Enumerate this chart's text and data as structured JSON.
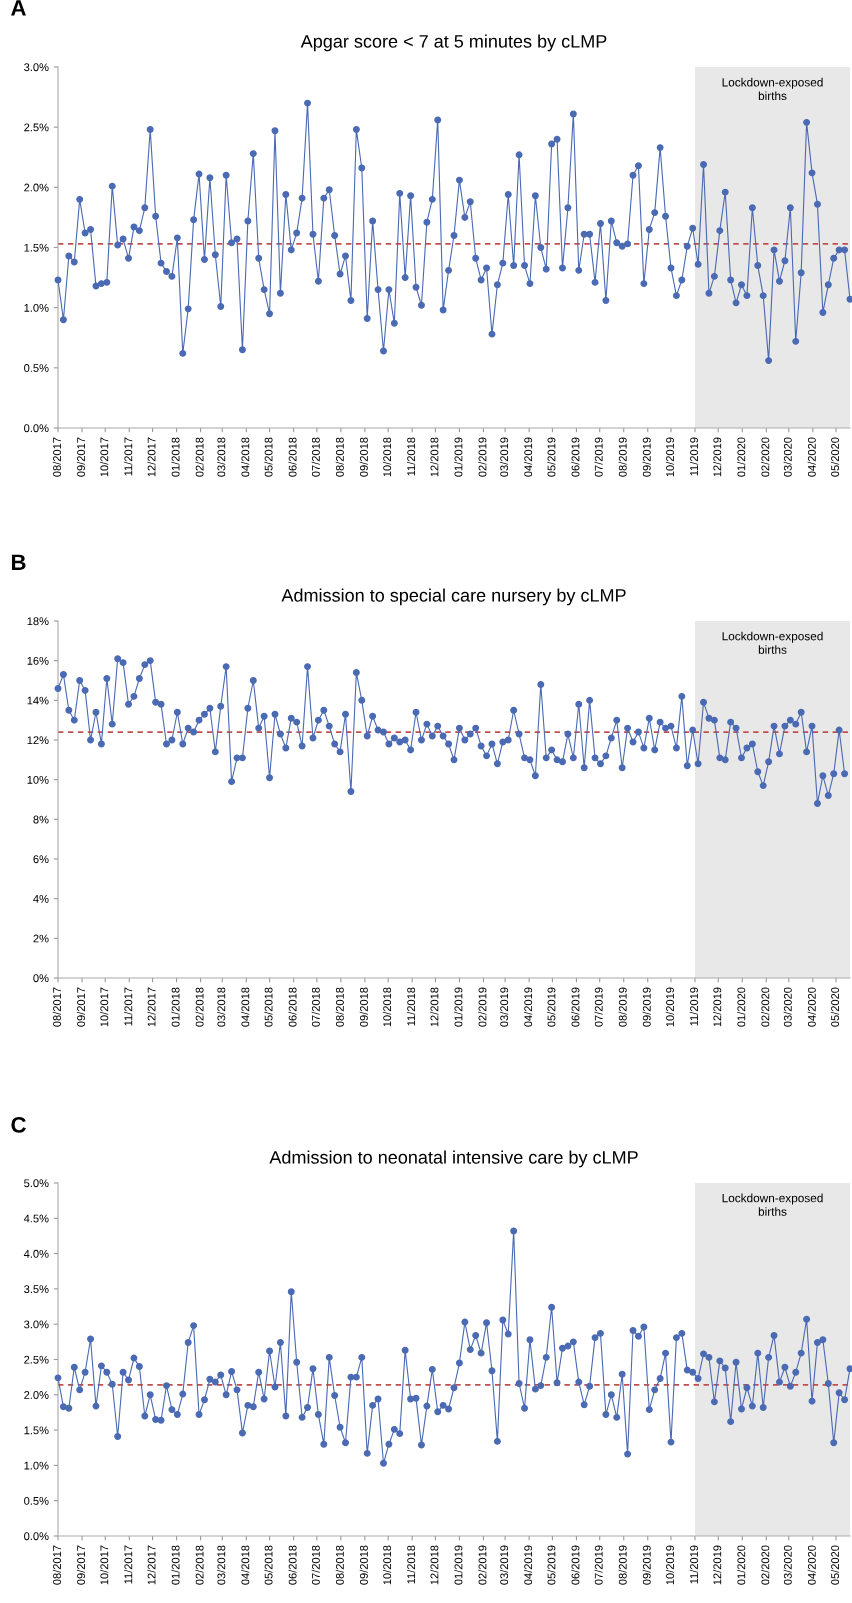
{
  "chart_data": [
    {
      "type": "line",
      "title": "Apgar score < 7 at 5 minutes by cLMP",
      "annotations": [
        "A"
      ],
      "marker": "circle",
      "line_style": "solid",
      "x": [
        "2017-08-01",
        "2017-08-08",
        "2017-08-15",
        "2017-08-22",
        "2017-08-29",
        "2017-09-05",
        "2017-09-12",
        "2017-09-19",
        "2017-09-26",
        "2017-10-03",
        "2017-10-10",
        "2017-10-17",
        "2017-10-24",
        "2017-10-31",
        "2017-11-07",
        "2017-11-14",
        "2017-11-21",
        "2017-11-28",
        "2017-12-05",
        "2017-12-12",
        "2017-12-19",
        "2017-12-26",
        "2018-01-02",
        "2018-01-09",
        "2018-01-16",
        "2018-01-23",
        "2018-01-30",
        "2018-02-06",
        "2018-02-13",
        "2018-02-20",
        "2018-02-27",
        "2018-03-06",
        "2018-03-13",
        "2018-03-20",
        "2018-03-27",
        "2018-04-03",
        "2018-04-10",
        "2018-04-17",
        "2018-04-24",
        "2018-05-01",
        "2018-05-08",
        "2018-05-15",
        "2018-05-22",
        "2018-05-29",
        "2018-06-05",
        "2018-06-12",
        "2018-06-19",
        "2018-06-26",
        "2018-07-03",
        "2018-07-10",
        "2018-07-17",
        "2018-07-24",
        "2018-07-31",
        "2018-08-07",
        "2018-08-14",
        "2018-08-21",
        "2018-08-28",
        "2018-09-04",
        "2018-09-11",
        "2018-09-18",
        "2018-09-25",
        "2018-10-02",
        "2018-10-09",
        "2018-10-16",
        "2018-10-23",
        "2018-10-30",
        "2018-11-06",
        "2018-11-13",
        "2018-11-20",
        "2018-11-27",
        "2018-12-04",
        "2018-12-11",
        "2018-12-18",
        "2018-12-25",
        "2019-01-01",
        "2019-01-08",
        "2019-01-15",
        "2019-01-22",
        "2019-01-29",
        "2019-02-05",
        "2019-02-12",
        "2019-02-19",
        "2019-02-26",
        "2019-03-05",
        "2019-03-12",
        "2019-03-19",
        "2019-03-26",
        "2019-04-02",
        "2019-04-09",
        "2019-04-16",
        "2019-04-23",
        "2019-04-30",
        "2019-05-07",
        "2019-05-14",
        "2019-05-21",
        "2019-05-28",
        "2019-06-04",
        "2019-06-11",
        "2019-06-18",
        "2019-06-25",
        "2019-07-02",
        "2019-07-09",
        "2019-07-16",
        "2019-07-23",
        "2019-07-30",
        "2019-08-06",
        "2019-08-13",
        "2019-08-20",
        "2019-08-27",
        "2019-09-03",
        "2019-09-10",
        "2019-09-17",
        "2019-09-24",
        "2019-10-01",
        "2019-10-08",
        "2019-10-15",
        "2019-10-22",
        "2019-10-29",
        "2019-11-05",
        "2019-11-12",
        "2019-11-19",
        "2019-11-26",
        "2019-12-03",
        "2019-12-10",
        "2019-12-17",
        "2019-12-24",
        "2019-12-31",
        "2020-01-07",
        "2020-01-14",
        "2020-01-21",
        "2020-01-28",
        "2020-02-04",
        "2020-02-11",
        "2020-02-18",
        "2020-02-25",
        "2020-03-03",
        "2020-03-10",
        "2020-03-17",
        "2020-03-24",
        "2020-03-31",
        "2020-04-07",
        "2020-04-14",
        "2020-04-21",
        "2020-04-28",
        "2020-05-05",
        "2020-05-12",
        "2020-05-19"
      ],
      "series": [
        {
          "color": "#4a6ab3",
          "values": [
            1.23,
            0.9,
            1.43,
            1.38,
            1.9,
            1.62,
            1.65,
            1.18,
            1.2,
            1.21,
            2.01,
            1.52,
            1.57,
            1.41,
            1.67,
            1.64,
            1.83,
            2.48,
            1.76,
            1.37,
            1.3,
            1.26,
            1.58,
            0.62,
            0.99,
            1.73,
            2.11,
            1.4,
            2.08,
            1.44,
            1.01,
            2.1,
            1.54,
            1.57,
            0.65,
            1.72,
            2.28,
            1.41,
            1.15,
            0.95,
            2.47,
            1.12,
            1.94,
            1.48,
            1.62,
            1.91,
            2.7,
            1.61,
            1.22,
            1.91,
            1.98,
            1.6,
            1.28,
            1.43,
            1.06,
            2.48,
            2.16,
            0.91,
            1.72,
            1.15,
            0.64,
            1.15,
            0.87,
            1.95,
            1.25,
            1.93,
            1.17,
            1.02,
            1.71,
            1.9,
            2.56,
            0.98,
            1.31,
            1.6,
            2.06,
            1.75,
            1.88,
            1.41,
            1.23,
            1.33,
            0.78,
            1.19,
            1.37,
            1.94,
            1.35,
            2.27,
            1.35,
            1.2,
            1.93,
            1.5,
            1.32,
            2.36,
            2.4,
            1.33,
            1.83,
            2.61,
            1.31,
            1.61,
            1.61,
            1.21,
            1.7,
            1.06,
            1.72,
            1.54,
            1.51,
            1.53,
            2.1,
            2.18,
            1.2,
            1.65,
            1.79,
            2.33,
            1.76,
            1.33,
            1.1,
            1.23,
            1.51,
            1.66,
            1.36,
            2.19,
            1.12,
            1.26,
            1.64,
            1.96,
            1.23,
            1.04,
            1.19,
            1.1,
            1.83,
            1.35,
            1.1,
            0.56,
            1.48,
            1.22,
            1.39,
            1.83,
            0.72,
            1.29,
            2.54,
            2.12,
            1.86,
            0.96,
            1.19,
            1.41,
            1.48,
            1.48,
            1.07
          ]
        }
      ],
      "xlim": [
        "2017-08-01",
        "2020-05-19"
      ],
      "xticks": [
        {
          "value": "2017-08-01",
          "label": "08/2017"
        },
        {
          "value": "2017-09-01",
          "label": "09/2017"
        },
        {
          "value": "2017-10-01",
          "label": "10/2017"
        },
        {
          "value": "2017-11-01",
          "label": "11/2017"
        },
        {
          "value": "2017-12-01",
          "label": "12/2017"
        },
        {
          "value": "2018-01-01",
          "label": "01/2018"
        },
        {
          "value": "2018-02-01",
          "label": "02/2018"
        },
        {
          "value": "2018-03-01",
          "label": "03/2018"
        },
        {
          "value": "2018-04-01",
          "label": "04/2018"
        },
        {
          "value": "2018-05-01",
          "label": "05/2018"
        },
        {
          "value": "2018-06-01",
          "label": "06/2018"
        },
        {
          "value": "2018-07-01",
          "label": "07/2018"
        },
        {
          "value": "2018-08-01",
          "label": "08/2018"
        },
        {
          "value": "2018-09-01",
          "label": "09/2018"
        },
        {
          "value": "2018-10-01",
          "label": "10/2018"
        },
        {
          "value": "2018-11-01",
          "label": "11/2018"
        },
        {
          "value": "2018-12-01",
          "label": "12/2018"
        },
        {
          "value": "2019-01-01",
          "label": "01/2019"
        },
        {
          "value": "2019-02-01",
          "label": "02/2019"
        },
        {
          "value": "2019-03-01",
          "label": "03/2019"
        },
        {
          "value": "2019-04-01",
          "label": "04/2019"
        },
        {
          "value": "2019-05-01",
          "label": "05/2019"
        },
        {
          "value": "2019-06-01",
          "label": "06/2019"
        },
        {
          "value": "2019-07-01",
          "label": "07/2019"
        },
        {
          "value": "2019-08-01",
          "label": "08/2019"
        },
        {
          "value": "2019-09-01",
          "label": "09/2019"
        },
        {
          "value": "2019-10-01",
          "label": "10/2019"
        },
        {
          "value": "2019-11-01",
          "label": "11/2019"
        },
        {
          "value": "2019-12-01",
          "label": "12/2019"
        },
        {
          "value": "2020-01-01",
          "label": "01/2020"
        },
        {
          "value": "2020-02-01",
          "label": "02/2020"
        },
        {
          "value": "2020-03-01",
          "label": "03/2020"
        },
        {
          "value": "2020-04-01",
          "label": "04/2020"
        },
        {
          "value": "2020-05-01",
          "label": "05/2020"
        }
      ],
      "ylim": [
        0,
        3.0
      ],
      "yticks": [
        {
          "value": 0,
          "label": "0.0%"
        },
        {
          "value": 0.5,
          "label": "0.5%"
        },
        {
          "value": 1.0,
          "label": "1.0%"
        },
        {
          "value": 1.5,
          "label": "1.5%"
        },
        {
          "value": 2.0,
          "label": "2.0%"
        },
        {
          "value": 2.5,
          "label": "2.5%"
        },
        {
          "value": 3.0,
          "label": "3.0%"
        }
      ],
      "ref_lines": [
        {
          "axis": "y",
          "value": 1.53,
          "color": "#c0504d",
          "line_style": "dashed"
        }
      ],
      "bands": [
        {
          "axis": "x",
          "from": "2019-11-01",
          "to": "2020-05-19",
          "label": "Lockdown-exposed\nbirths",
          "color": "#e8e8e8"
        }
      ]
    },
    {
      "type": "line",
      "title": "Admission to special care nursery by cLMP",
      "annotations": [
        "B"
      ],
      "marker": "circle",
      "line_style": "solid",
      "x": [
        "2017-08-01",
        "2017-08-08",
        "2017-08-15",
        "2017-08-22",
        "2017-08-29",
        "2017-09-05",
        "2017-09-12",
        "2017-09-19",
        "2017-09-26",
        "2017-10-03",
        "2017-10-10",
        "2017-10-17",
        "2017-10-24",
        "2017-10-31",
        "2017-11-07",
        "2017-11-14",
        "2017-11-21",
        "2017-11-28",
        "2017-12-05",
        "2017-12-12",
        "2017-12-19",
        "2017-12-26",
        "2018-01-02",
        "2018-01-09",
        "2018-01-16",
        "2018-01-23",
        "2018-01-30",
        "2018-02-06",
        "2018-02-13",
        "2018-02-20",
        "2018-02-27",
        "2018-03-06",
        "2018-03-13",
        "2018-03-20",
        "2018-03-27",
        "2018-04-03",
        "2018-04-10",
        "2018-04-17",
        "2018-04-24",
        "2018-05-01",
        "2018-05-08",
        "2018-05-15",
        "2018-05-22",
        "2018-05-29",
        "2018-06-05",
        "2018-06-12",
        "2018-06-19",
        "2018-06-26",
        "2018-07-03",
        "2018-07-10",
        "2018-07-17",
        "2018-07-24",
        "2018-07-31",
        "2018-08-07",
        "2018-08-14",
        "2018-08-21",
        "2018-08-28",
        "2018-09-04",
        "2018-09-11",
        "2018-09-18",
        "2018-09-25",
        "2018-10-02",
        "2018-10-09",
        "2018-10-16",
        "2018-10-23",
        "2018-10-30",
        "2018-11-06",
        "2018-11-13",
        "2018-11-20",
        "2018-11-27",
        "2018-12-04",
        "2018-12-11",
        "2018-12-18",
        "2018-12-25",
        "2019-01-01",
        "2019-01-08",
        "2019-01-15",
        "2019-01-22",
        "2019-01-29",
        "2019-02-05",
        "2019-02-12",
        "2019-02-19",
        "2019-02-26",
        "2019-03-05",
        "2019-03-12",
        "2019-03-19",
        "2019-03-26",
        "2019-04-02",
        "2019-04-09",
        "2019-04-16",
        "2019-04-23",
        "2019-04-30",
        "2019-05-07",
        "2019-05-14",
        "2019-05-21",
        "2019-05-28",
        "2019-06-04",
        "2019-06-11",
        "2019-06-18",
        "2019-06-25",
        "2019-07-02",
        "2019-07-09",
        "2019-07-16",
        "2019-07-23",
        "2019-07-30",
        "2019-08-06",
        "2019-08-13",
        "2019-08-20",
        "2019-08-27",
        "2019-09-03",
        "2019-09-10",
        "2019-09-17",
        "2019-09-24",
        "2019-10-01",
        "2019-10-08",
        "2019-10-15",
        "2019-10-22",
        "2019-10-29",
        "2019-11-05",
        "2019-11-12",
        "2019-11-19",
        "2019-11-26",
        "2019-12-03",
        "2019-12-10",
        "2019-12-17",
        "2019-12-24",
        "2019-12-31",
        "2020-01-07",
        "2020-01-14",
        "2020-01-21",
        "2020-01-28",
        "2020-02-04",
        "2020-02-11",
        "2020-02-18",
        "2020-02-25",
        "2020-03-03",
        "2020-03-10",
        "2020-03-17",
        "2020-03-24",
        "2020-03-31",
        "2020-04-07",
        "2020-04-14",
        "2020-04-21",
        "2020-04-28",
        "2020-05-05",
        "2020-05-12"
      ],
      "series": [
        {
          "color": "#4a6ab3",
          "values": [
            14.6,
            15.3,
            13.5,
            13.0,
            15.0,
            14.5,
            12.0,
            13.4,
            11.8,
            15.1,
            12.8,
            16.1,
            15.9,
            13.8,
            14.2,
            15.1,
            15.8,
            16.0,
            13.9,
            13.8,
            11.8,
            12.0,
            13.4,
            11.8,
            12.6,
            12.4,
            13.0,
            13.3,
            13.6,
            11.4,
            13.7,
            15.7,
            9.9,
            11.1,
            11.1,
            13.6,
            15.0,
            12.6,
            13.2,
            10.1,
            13.3,
            12.3,
            11.6,
            13.1,
            12.9,
            11.7,
            15.7,
            12.1,
            13.0,
            13.5,
            12.7,
            11.8,
            11.4,
            13.3,
            9.4,
            15.4,
            14.0,
            12.2,
            13.2,
            12.5,
            12.4,
            11.8,
            12.1,
            11.9,
            12.0,
            11.5,
            13.4,
            12.0,
            12.8,
            12.2,
            12.7,
            12.2,
            11.8,
            11.0,
            12.6,
            12.0,
            12.3,
            12.6,
            11.7,
            11.2,
            11.8,
            10.8,
            11.9,
            12.0,
            13.5,
            12.3,
            11.1,
            11.0,
            10.2,
            14.8,
            11.1,
            11.5,
            11.0,
            10.9,
            12.3,
            11.1,
            13.8,
            10.6,
            14.0,
            11.1,
            10.8,
            11.2,
            12.1,
            13.0,
            10.6,
            12.6,
            11.9,
            12.4,
            11.6,
            13.1,
            11.5,
            12.9,
            12.6,
            12.7,
            11.6,
            14.2,
            10.7,
            12.5,
            10.8,
            13.9,
            13.1,
            13.0,
            11.1,
            11.0,
            12.9,
            12.6,
            11.1,
            11.6,
            11.8,
            10.4,
            9.7,
            10.9,
            12.7,
            11.3,
            12.7,
            13.0,
            12.8,
            13.4,
            11.4,
            12.7,
            8.8,
            10.2,
            9.2,
            10.3,
            12.5,
            10.3
          ]
        }
      ],
      "xlim": [
        "2017-08-01",
        "2020-05-19"
      ],
      "xticks": [
        {
          "value": "2017-08-01",
          "label": "08/2017"
        },
        {
          "value": "2017-09-01",
          "label": "09/2017"
        },
        {
          "value": "2017-10-01",
          "label": "10/2017"
        },
        {
          "value": "2017-11-01",
          "label": "11/2017"
        },
        {
          "value": "2017-12-01",
          "label": "12/2017"
        },
        {
          "value": "2018-01-01",
          "label": "01/2018"
        },
        {
          "value": "2018-02-01",
          "label": "02/2018"
        },
        {
          "value": "2018-03-01",
          "label": "03/2018"
        },
        {
          "value": "2018-04-01",
          "label": "04/2018"
        },
        {
          "value": "2018-05-01",
          "label": "05/2018"
        },
        {
          "value": "2018-06-01",
          "label": "06/2018"
        },
        {
          "value": "2018-07-01",
          "label": "07/2018"
        },
        {
          "value": "2018-08-01",
          "label": "08/2018"
        },
        {
          "value": "2018-09-01",
          "label": "09/2018"
        },
        {
          "value": "2018-10-01",
          "label": "10/2018"
        },
        {
          "value": "2018-11-01",
          "label": "11/2018"
        },
        {
          "value": "2018-12-01",
          "label": "12/2018"
        },
        {
          "value": "2019-01-01",
          "label": "01/2019"
        },
        {
          "value": "2019-02-01",
          "label": "02/2019"
        },
        {
          "value": "2019-03-01",
          "label": "03/2019"
        },
        {
          "value": "2019-04-01",
          "label": "04/2019"
        },
        {
          "value": "2019-05-01",
          "label": "05/2019"
        },
        {
          "value": "2019-06-01",
          "label": "06/2019"
        },
        {
          "value": "2019-07-01",
          "label": "07/2019"
        },
        {
          "value": "2019-08-01",
          "label": "08/2019"
        },
        {
          "value": "2019-09-01",
          "label": "09/2019"
        },
        {
          "value": "2019-10-01",
          "label": "10/2019"
        },
        {
          "value": "2019-11-01",
          "label": "11/2019"
        },
        {
          "value": "2019-12-01",
          "label": "12/2019"
        },
        {
          "value": "2020-01-01",
          "label": "01/2020"
        },
        {
          "value": "2020-02-01",
          "label": "02/2020"
        },
        {
          "value": "2020-03-01",
          "label": "03/2020"
        },
        {
          "value": "2020-04-01",
          "label": "04/2020"
        },
        {
          "value": "2020-05-01",
          "label": "05/2020"
        }
      ],
      "ylim": [
        0,
        18
      ],
      "yticks": [
        {
          "value": 0,
          "label": "0%"
        },
        {
          "value": 2,
          "label": "2%"
        },
        {
          "value": 4,
          "label": "4%"
        },
        {
          "value": 6,
          "label": "6%"
        },
        {
          "value": 8,
          "label": "8%"
        },
        {
          "value": 10,
          "label": "10%"
        },
        {
          "value": 12,
          "label": "12%"
        },
        {
          "value": 14,
          "label": "14%"
        },
        {
          "value": 16,
          "label": "16%"
        },
        {
          "value": 18,
          "label": "18%"
        }
      ],
      "ref_lines": [
        {
          "axis": "y",
          "value": 12.4,
          "color": "#c0504d",
          "line_style": "dashed"
        }
      ],
      "bands": [
        {
          "axis": "x",
          "from": "2019-11-01",
          "to": "2020-05-19",
          "label": "Lockdown-exposed\nbirths",
          "color": "#e8e8e8"
        }
      ]
    },
    {
      "type": "line",
      "title": "Admission to neonatal intensive care by cLMP",
      "annotations": [
        "C"
      ],
      "marker": "circle",
      "line_style": "solid",
      "x": [
        "2017-08-01",
        "2017-08-08",
        "2017-08-15",
        "2017-08-22",
        "2017-08-29",
        "2017-09-05",
        "2017-09-12",
        "2017-09-19",
        "2017-09-26",
        "2017-10-03",
        "2017-10-10",
        "2017-10-17",
        "2017-10-24",
        "2017-10-31",
        "2017-11-07",
        "2017-11-14",
        "2017-11-21",
        "2017-11-28",
        "2017-12-05",
        "2017-12-12",
        "2017-12-19",
        "2017-12-26",
        "2018-01-02",
        "2018-01-09",
        "2018-01-16",
        "2018-01-23",
        "2018-01-30",
        "2018-02-06",
        "2018-02-13",
        "2018-02-20",
        "2018-02-27",
        "2018-03-06",
        "2018-03-13",
        "2018-03-20",
        "2018-03-27",
        "2018-04-03",
        "2018-04-10",
        "2018-04-17",
        "2018-04-24",
        "2018-05-01",
        "2018-05-08",
        "2018-05-15",
        "2018-05-22",
        "2018-05-29",
        "2018-06-05",
        "2018-06-12",
        "2018-06-19",
        "2018-06-26",
        "2018-07-03",
        "2018-07-10",
        "2018-07-17",
        "2018-07-24",
        "2018-07-31",
        "2018-08-07",
        "2018-08-14",
        "2018-08-21",
        "2018-08-28",
        "2018-09-04",
        "2018-09-11",
        "2018-09-18",
        "2018-09-25",
        "2018-10-02",
        "2018-10-09",
        "2018-10-16",
        "2018-10-23",
        "2018-10-30",
        "2018-11-06",
        "2018-11-13",
        "2018-11-20",
        "2018-11-27",
        "2018-12-04",
        "2018-12-11",
        "2018-12-18",
        "2018-12-25",
        "2019-01-01",
        "2019-01-08",
        "2019-01-15",
        "2019-01-22",
        "2019-01-29",
        "2019-02-05",
        "2019-02-12",
        "2019-02-19",
        "2019-02-26",
        "2019-03-05",
        "2019-03-12",
        "2019-03-19",
        "2019-03-26",
        "2019-04-02",
        "2019-04-09",
        "2019-04-16",
        "2019-04-23",
        "2019-04-30",
        "2019-05-07",
        "2019-05-14",
        "2019-05-21",
        "2019-05-28",
        "2019-06-04",
        "2019-06-11",
        "2019-06-18",
        "2019-06-25",
        "2019-07-02",
        "2019-07-09",
        "2019-07-16",
        "2019-07-23",
        "2019-07-30",
        "2019-08-06",
        "2019-08-13",
        "2019-08-20",
        "2019-08-27",
        "2019-09-03",
        "2019-09-10",
        "2019-09-17",
        "2019-09-24",
        "2019-10-01",
        "2019-10-08",
        "2019-10-15",
        "2019-10-22",
        "2019-10-29",
        "2019-11-05",
        "2019-11-12",
        "2019-11-19",
        "2019-11-26",
        "2019-12-03",
        "2019-12-10",
        "2019-12-17",
        "2019-12-24",
        "2019-12-31",
        "2020-01-07",
        "2020-01-14",
        "2020-01-21",
        "2020-01-28",
        "2020-02-04",
        "2020-02-11",
        "2020-02-18",
        "2020-02-25",
        "2020-03-03",
        "2020-03-10",
        "2020-03-17",
        "2020-03-24",
        "2020-03-31",
        "2020-04-07",
        "2020-04-14",
        "2020-04-21",
        "2020-04-28",
        "2020-05-05",
        "2020-05-12",
        "2020-05-19"
      ],
      "series": [
        {
          "color": "#4a6ab3",
          "values": [
            2.24,
            1.83,
            1.81,
            2.39,
            2.07,
            2.32,
            2.79,
            1.84,
            2.41,
            2.32,
            2.15,
            1.41,
            2.32,
            2.21,
            2.52,
            2.4,
            1.7,
            2.0,
            1.65,
            1.64,
            2.13,
            1.79,
            1.72,
            2.01,
            2.74,
            2.98,
            1.72,
            1.93,
            2.22,
            2.18,
            2.28,
            2.0,
            2.33,
            2.07,
            1.46,
            1.85,
            1.83,
            2.32,
            1.94,
            2.62,
            2.11,
            2.74,
            1.7,
            3.46,
            2.46,
            1.68,
            1.82,
            2.37,
            1.72,
            1.3,
            2.53,
            1.99,
            1.54,
            1.32,
            2.25,
            2.25,
            2.53,
            1.17,
            1.85,
            1.94,
            1.03,
            1.3,
            1.51,
            1.45,
            2.63,
            1.94,
            1.95,
            1.29,
            1.84,
            2.36,
            1.76,
            1.85,
            1.8,
            2.1,
            2.45,
            3.03,
            2.64,
            2.84,
            2.59,
            3.02,
            2.34,
            1.34,
            3.06,
            2.86,
            4.32,
            2.16,
            1.81,
            2.78,
            2.08,
            2.13,
            2.53,
            3.24,
            2.17,
            2.66,
            2.69,
            2.75,
            2.18,
            1.86,
            2.12,
            2.81,
            2.87,
            1.72,
            2.0,
            1.68,
            2.29,
            1.16,
            2.91,
            2.83,
            2.96,
            1.79,
            2.07,
            2.23,
            2.59,
            1.33,
            2.81,
            2.87,
            2.35,
            2.32,
            2.23,
            2.58,
            2.53,
            1.9,
            2.48,
            2.38,
            1.62,
            2.46,
            1.8,
            2.1,
            1.84,
            2.59,
            1.82,
            2.53,
            2.84,
            2.18,
            2.39,
            2.12,
            2.32,
            2.59,
            3.07,
            1.91,
            2.74,
            2.78,
            2.16,
            1.32,
            2.03,
            1.93,
            2.37
          ]
        }
      ],
      "xlim": [
        "2017-08-01",
        "2020-05-19"
      ],
      "xticks": [
        {
          "value": "2017-08-01",
          "label": "08/2017"
        },
        {
          "value": "2017-09-01",
          "label": "09/2017"
        },
        {
          "value": "2017-10-01",
          "label": "10/2017"
        },
        {
          "value": "2017-11-01",
          "label": "11/2017"
        },
        {
          "value": "2017-12-01",
          "label": "12/2017"
        },
        {
          "value": "2018-01-01",
          "label": "01/2018"
        },
        {
          "value": "2018-02-01",
          "label": "02/2018"
        },
        {
          "value": "2018-03-01",
          "label": "03/2018"
        },
        {
          "value": "2018-04-01",
          "label": "04/2018"
        },
        {
          "value": "2018-05-01",
          "label": "05/2018"
        },
        {
          "value": "2018-06-01",
          "label": "06/2018"
        },
        {
          "value": "2018-07-01",
          "label": "07/2018"
        },
        {
          "value": "2018-08-01",
          "label": "08/2018"
        },
        {
          "value": "2018-09-01",
          "label": "09/2018"
        },
        {
          "value": "2018-10-01",
          "label": "10/2018"
        },
        {
          "value": "2018-11-01",
          "label": "11/2018"
        },
        {
          "value": "2018-12-01",
          "label": "12/2018"
        },
        {
          "value": "2019-01-01",
          "label": "01/2019"
        },
        {
          "value": "2019-02-01",
          "label": "02/2019"
        },
        {
          "value": "2019-03-01",
          "label": "03/2019"
        },
        {
          "value": "2019-04-01",
          "label": "04/2019"
        },
        {
          "value": "2019-05-01",
          "label": "05/2019"
        },
        {
          "value": "2019-06-01",
          "label": "06/2019"
        },
        {
          "value": "2019-07-01",
          "label": "07/2019"
        },
        {
          "value": "2019-08-01",
          "label": "08/2019"
        },
        {
          "value": "2019-09-01",
          "label": "09/2019"
        },
        {
          "value": "2019-10-01",
          "label": "10/2019"
        },
        {
          "value": "2019-11-01",
          "label": "11/2019"
        },
        {
          "value": "2019-12-01",
          "label": "12/2019"
        },
        {
          "value": "2020-01-01",
          "label": "01/2020"
        },
        {
          "value": "2020-02-01",
          "label": "02/2020"
        },
        {
          "value": "2020-03-01",
          "label": "03/2020"
        },
        {
          "value": "2020-04-01",
          "label": "04/2020"
        },
        {
          "value": "2020-05-01",
          "label": "05/2020"
        }
      ],
      "ylim": [
        0,
        5.0
      ],
      "yticks": [
        {
          "value": 0,
          "label": "0.0%"
        },
        {
          "value": 0.5,
          "label": "0.5%"
        },
        {
          "value": 1.0,
          "label": "1.0%"
        },
        {
          "value": 1.5,
          "label": "1.5%"
        },
        {
          "value": 2.0,
          "label": "2.0%"
        },
        {
          "value": 2.5,
          "label": "2.5%"
        },
        {
          "value": 3.0,
          "label": "3.0%"
        },
        {
          "value": 3.5,
          "label": "3.5%"
        },
        {
          "value": 4.0,
          "label": "4.0%"
        },
        {
          "value": 4.5,
          "label": "4.5%"
        },
        {
          "value": 5.0,
          "label": "5.0%"
        }
      ],
      "ref_lines": [
        {
          "axis": "y",
          "value": 2.14,
          "color": "#c0504d",
          "line_style": "dashed"
        }
      ],
      "bands": [
        {
          "axis": "x",
          "from": "2019-11-01",
          "to": "2020-05-19",
          "label": "Lockdown-exposed\nbirths",
          "color": "#e8e8e8"
        }
      ]
    }
  ]
}
